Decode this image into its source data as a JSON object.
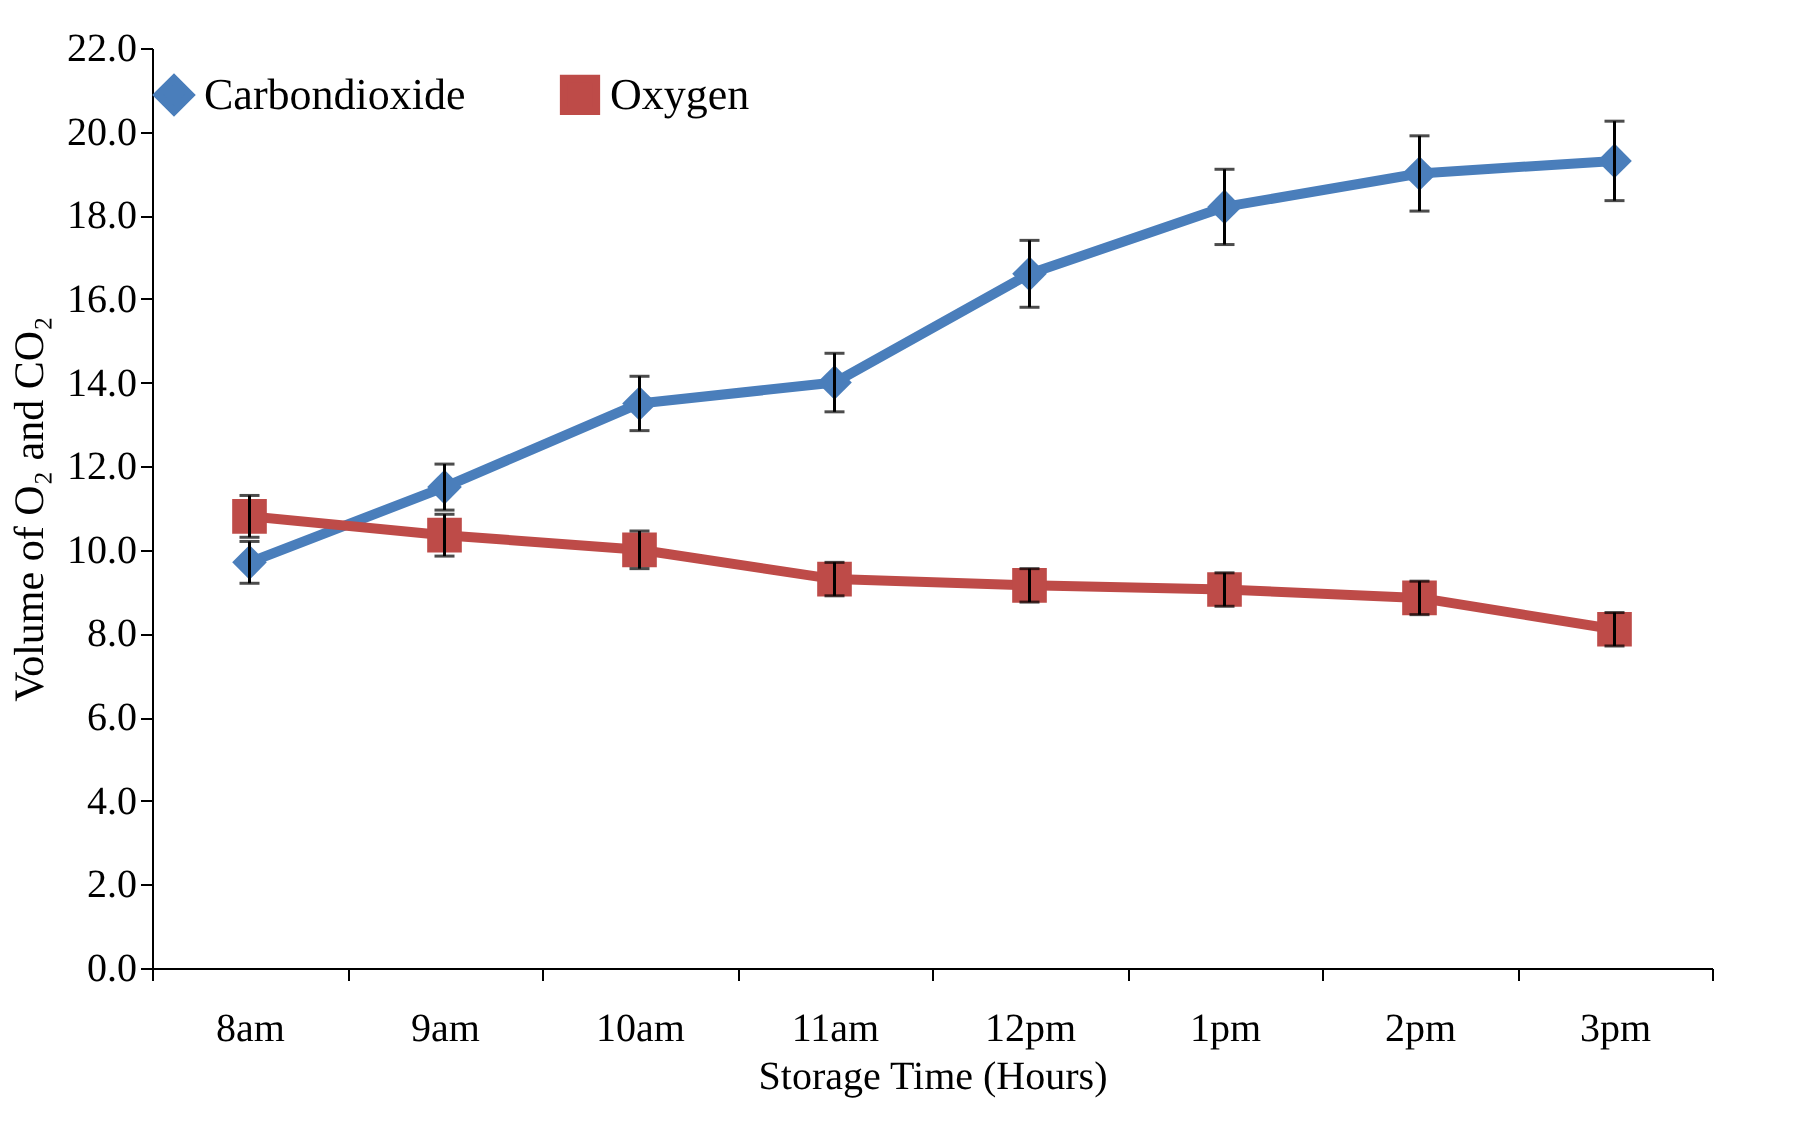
{
  "chart_data": {
    "type": "line",
    "xlabel": "Storage Time (Hours)",
    "ylabel": "Volume of O₂ and CO₂",
    "categories": [
      "8am",
      "9am",
      "10am",
      "11am",
      "12pm",
      "1pm",
      "2pm",
      "3pm"
    ],
    "series": [
      {
        "name": "Carbondioxide",
        "color": "#4a7ebb",
        "marker": "diamond",
        "values": [
          9.7,
          11.5,
          13.5,
          14.0,
          16.6,
          18.2,
          19.0,
          19.3
        ],
        "errors": [
          0.5,
          0.55,
          0.65,
          0.7,
          0.8,
          0.9,
          0.9,
          0.95
        ]
      },
      {
        "name": "Oxygen",
        "color": "#be4b48",
        "marker": "square",
        "values": [
          10.8,
          10.35,
          10.0,
          9.3,
          9.15,
          9.05,
          8.85,
          8.1
        ],
        "errors": [
          0.5,
          0.5,
          0.45,
          0.4,
          0.4,
          0.4,
          0.4,
          0.4
        ]
      }
    ],
    "ylim": [
      0,
      22
    ],
    "yticks": [
      {
        "value": 0,
        "label": "0.0"
      },
      {
        "value": 2,
        "label": "2.0"
      },
      {
        "value": 4,
        "label": "4.0"
      },
      {
        "value": 6,
        "label": "6.0"
      },
      {
        "value": 8,
        "label": "8.0"
      },
      {
        "value": 10,
        "label": "10.0"
      },
      {
        "value": 12,
        "label": "12.0"
      },
      {
        "value": 14,
        "label": "14.0"
      },
      {
        "value": 16,
        "label": "16.0"
      },
      {
        "value": 18,
        "label": "18.0"
      },
      {
        "value": 20,
        "label": "20.0"
      },
      {
        "value": 22,
        "label": "22.0"
      }
    ],
    "grid": false,
    "legend": "top",
    "line_style": "solid"
  }
}
